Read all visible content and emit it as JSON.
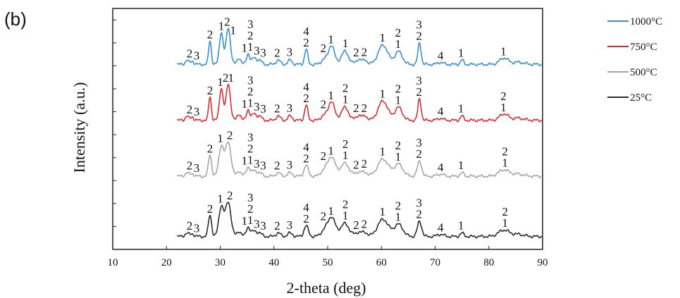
{
  "panel_label": "(b)",
  "chart_data": {
    "type": "line",
    "title": "",
    "xlabel": "2-theta (deg)",
    "ylabel": "Intensity (a.u.)",
    "xlim": [
      10,
      90
    ],
    "xticks": [
      10,
      20,
      30,
      40,
      50,
      60,
      70,
      80,
      90
    ],
    "y_tick_labels": false,
    "legend_position": "right",
    "legend": [
      {
        "name": "1000°C",
        "color": "#3a8fd0"
      },
      {
        "name": "750°C",
        "color": "#d62f2f"
      },
      {
        "name": "500°C",
        "color": "#a6a6a6"
      },
      {
        "name": "25°C",
        "color": "#2b2b2b"
      }
    ],
    "series": [
      {
        "name": "1000°C",
        "color": "#3a8fd0",
        "baseline": 4.3,
        "peaks": [
          [
            23.8,
            0.1,
            0.3
          ],
          [
            24.8,
            0.08,
            0.3
          ],
          [
            28.1,
            0.55,
            0.25
          ],
          [
            30.2,
            0.75,
            0.35
          ],
          [
            31.5,
            0.85,
            0.4
          ],
          [
            33.5,
            0.15,
            0.35
          ],
          [
            35.2,
            0.25,
            0.3
          ],
          [
            36.3,
            0.15,
            0.4
          ],
          [
            37.3,
            0.1,
            0.4
          ],
          [
            40.8,
            0.1,
            0.4
          ],
          [
            43.0,
            0.1,
            0.4
          ],
          [
            46.0,
            0.35,
            0.3
          ],
          [
            49.3,
            0.12,
            0.5
          ],
          [
            50.7,
            0.45,
            0.55
          ],
          [
            53.2,
            0.3,
            0.7
          ],
          [
            55.8,
            0.12,
            0.5
          ],
          [
            57.0,
            0.1,
            0.4
          ],
          [
            60.3,
            0.45,
            0.9
          ],
          [
            63.2,
            0.3,
            0.7
          ],
          [
            67.1,
            0.5,
            0.3
          ],
          [
            71.0,
            0.05,
            0.5
          ],
          [
            75.0,
            0.1,
            0.3
          ],
          [
            82.8,
            0.15,
            0.8
          ],
          [
            85.5,
            0.05,
            1.0
          ]
        ],
        "labels": [
          [
            24.3,
            [
              "2"
            ]
          ],
          [
            25.6,
            [
              "3"
            ]
          ],
          [
            28.1,
            [
              "2"
            ]
          ],
          [
            30.2,
            [
              "1"
            ]
          ],
          [
            31.3,
            [
              "2"
            ]
          ],
          [
            32.4,
            [
              "1"
            ]
          ],
          [
            34.5,
            [
              "1"
            ]
          ],
          [
            35.6,
            [
              "3",
              "2",
              "1"
            ]
          ],
          [
            36.8,
            [
              "3"
            ]
          ],
          [
            38.0,
            [
              "3"
            ]
          ],
          [
            40.6,
            [
              "2"
            ]
          ],
          [
            42.9,
            [
              "3"
            ]
          ],
          [
            46.0,
            [
              "4",
              "2"
            ]
          ],
          [
            49.2,
            [
              "2"
            ]
          ],
          [
            50.6,
            [
              "1"
            ]
          ],
          [
            53.3,
            [
              "1"
            ]
          ],
          [
            55.3,
            [
              "2"
            ]
          ],
          [
            56.8,
            [
              "2"
            ]
          ],
          [
            60.2,
            [
              "1"
            ]
          ],
          [
            63.1,
            [
              "2",
              "1"
            ]
          ],
          [
            67.0,
            [
              "3",
              "2"
            ]
          ],
          [
            71.0,
            [
              "4"
            ]
          ],
          [
            74.8,
            [
              "1"
            ]
          ],
          [
            82.7,
            [
              "1"
            ]
          ]
        ]
      },
      {
        "name": "750°C",
        "color": "#d62f2f",
        "baseline": 3.0,
        "peaks": [
          [
            23.8,
            0.1,
            0.3
          ],
          [
            24.8,
            0.08,
            0.3
          ],
          [
            28.1,
            0.55,
            0.25
          ],
          [
            30.2,
            0.75,
            0.35
          ],
          [
            31.5,
            0.85,
            0.4
          ],
          [
            33.5,
            0.15,
            0.35
          ],
          [
            35.2,
            0.25,
            0.3
          ],
          [
            36.3,
            0.15,
            0.4
          ],
          [
            37.3,
            0.1,
            0.4
          ],
          [
            40.8,
            0.1,
            0.4
          ],
          [
            43.0,
            0.1,
            0.4
          ],
          [
            46.0,
            0.35,
            0.3
          ],
          [
            49.3,
            0.12,
            0.5
          ],
          [
            50.7,
            0.45,
            0.55
          ],
          [
            53.2,
            0.3,
            0.7
          ],
          [
            55.8,
            0.12,
            0.5
          ],
          [
            57.0,
            0.1,
            0.4
          ],
          [
            60.3,
            0.45,
            0.9
          ],
          [
            63.2,
            0.3,
            0.7
          ],
          [
            67.1,
            0.5,
            0.3
          ],
          [
            71.0,
            0.05,
            0.5
          ],
          [
            75.0,
            0.1,
            0.3
          ],
          [
            82.8,
            0.15,
            0.8
          ],
          [
            85.5,
            0.05,
            1.0
          ]
        ],
        "labels": [
          [
            24.3,
            [
              "2"
            ]
          ],
          [
            25.6,
            [
              "3"
            ]
          ],
          [
            28.1,
            [
              "2"
            ]
          ],
          [
            30.0,
            [
              "1"
            ]
          ],
          [
            31.0,
            [
              "2"
            ]
          ],
          [
            32.0,
            [
              "1"
            ]
          ],
          [
            34.5,
            [
              "1"
            ]
          ],
          [
            35.6,
            [
              "3",
              "2",
              "1"
            ]
          ],
          [
            36.8,
            [
              "3"
            ]
          ],
          [
            38.0,
            [
              "3"
            ]
          ],
          [
            40.6,
            [
              "2"
            ]
          ],
          [
            42.9,
            [
              "3"
            ]
          ],
          [
            46.0,
            [
              "4",
              "2"
            ]
          ],
          [
            49.2,
            [
              "2"
            ]
          ],
          [
            50.6,
            [
              "1"
            ]
          ],
          [
            53.3,
            [
              "2",
              "1"
            ]
          ],
          [
            55.3,
            [
              "2"
            ]
          ],
          [
            56.8,
            [
              "2"
            ]
          ],
          [
            60.2,
            [
              "1"
            ]
          ],
          [
            63.1,
            [
              "2",
              "1"
            ]
          ],
          [
            67.0,
            [
              "3",
              "2"
            ]
          ],
          [
            71.0,
            [
              "4"
            ]
          ],
          [
            74.8,
            [
              "1"
            ]
          ],
          [
            82.7,
            [
              "2",
              "1"
            ]
          ]
        ]
      },
      {
        "name": "500°C",
        "color": "#a6a6a6",
        "baseline": 1.7,
        "peaks": [
          [
            23.8,
            0.08,
            0.35
          ],
          [
            24.8,
            0.06,
            0.35
          ],
          [
            28.1,
            0.5,
            0.3
          ],
          [
            30.2,
            0.7,
            0.45
          ],
          [
            31.5,
            0.8,
            0.5
          ],
          [
            33.5,
            0.12,
            0.4
          ],
          [
            35.2,
            0.22,
            0.35
          ],
          [
            36.3,
            0.12,
            0.45
          ],
          [
            37.3,
            0.08,
            0.45
          ],
          [
            40.8,
            0.08,
            0.45
          ],
          [
            43.0,
            0.08,
            0.45
          ],
          [
            46.0,
            0.25,
            0.4
          ],
          [
            49.3,
            0.12,
            0.6
          ],
          [
            50.7,
            0.45,
            0.7
          ],
          [
            53.2,
            0.3,
            0.8
          ],
          [
            55.8,
            0.1,
            0.6
          ],
          [
            57.0,
            0.08,
            0.5
          ],
          [
            60.3,
            0.4,
            1.0
          ],
          [
            63.2,
            0.28,
            0.8
          ],
          [
            67.1,
            0.35,
            0.4
          ],
          [
            71.0,
            0.05,
            0.6
          ],
          [
            75.0,
            0.08,
            0.35
          ],
          [
            82.8,
            0.15,
            1.0
          ],
          [
            85.5,
            0.05,
            1.0
          ]
        ],
        "labels": [
          [
            24.3,
            [
              "2"
            ]
          ],
          [
            25.6,
            [
              "3"
            ]
          ],
          [
            28.1,
            [
              "2"
            ]
          ],
          [
            30.0,
            [
              "1"
            ]
          ],
          [
            31.8,
            [
              "2"
            ]
          ],
          [
            34.5,
            [
              "1"
            ]
          ],
          [
            35.6,
            [
              "3",
              "2",
              "1"
            ]
          ],
          [
            36.8,
            [
              "3"
            ]
          ],
          [
            38.0,
            [
              "3"
            ]
          ],
          [
            40.6,
            [
              "2"
            ]
          ],
          [
            42.9,
            [
              "3"
            ]
          ],
          [
            46.0,
            [
              "4",
              "2"
            ]
          ],
          [
            49.2,
            [
              "2"
            ]
          ],
          [
            50.6,
            [
              "1"
            ]
          ],
          [
            53.3,
            [
              "2",
              "1"
            ]
          ],
          [
            55.3,
            [
              "2"
            ]
          ],
          [
            56.8,
            [
              "2"
            ]
          ],
          [
            60.2,
            [
              "1"
            ]
          ],
          [
            63.1,
            [
              "2",
              "1"
            ]
          ],
          [
            67.0,
            [
              "3",
              "2"
            ]
          ],
          [
            71.0,
            [
              "4"
            ]
          ],
          [
            74.8,
            [
              "1"
            ]
          ],
          [
            83.0,
            [
              "2",
              "1"
            ]
          ]
        ]
      },
      {
        "name": "25°C",
        "color": "#2b2b2b",
        "baseline": 0.3,
        "peaks": [
          [
            23.8,
            0.08,
            0.35
          ],
          [
            24.8,
            0.06,
            0.35
          ],
          [
            28.1,
            0.5,
            0.3
          ],
          [
            30.2,
            0.7,
            0.45
          ],
          [
            31.5,
            0.8,
            0.5
          ],
          [
            33.5,
            0.12,
            0.4
          ],
          [
            35.2,
            0.22,
            0.35
          ],
          [
            36.3,
            0.12,
            0.45
          ],
          [
            37.3,
            0.08,
            0.45
          ],
          [
            40.8,
            0.08,
            0.45
          ],
          [
            43.0,
            0.08,
            0.45
          ],
          [
            46.0,
            0.25,
            0.4
          ],
          [
            49.3,
            0.12,
            0.6
          ],
          [
            50.7,
            0.45,
            0.7
          ],
          [
            53.2,
            0.3,
            0.8
          ],
          [
            55.8,
            0.1,
            0.6
          ],
          [
            57.0,
            0.08,
            0.5
          ],
          [
            60.3,
            0.4,
            1.0
          ],
          [
            63.2,
            0.28,
            0.8
          ],
          [
            67.1,
            0.35,
            0.4
          ],
          [
            71.0,
            0.05,
            0.6
          ],
          [
            75.0,
            0.08,
            0.35
          ],
          [
            82.8,
            0.15,
            1.0
          ],
          [
            85.5,
            0.05,
            1.0
          ]
        ],
        "labels": [
          [
            24.3,
            [
              "2"
            ]
          ],
          [
            25.6,
            [
              "3"
            ]
          ],
          [
            28.1,
            [
              "2"
            ]
          ],
          [
            30.0,
            [
              "1"
            ]
          ],
          [
            31.8,
            [
              "2"
            ]
          ],
          [
            34.5,
            [
              "1"
            ]
          ],
          [
            35.6,
            [
              "3",
              "2",
              "1"
            ]
          ],
          [
            36.8,
            [
              "3"
            ]
          ],
          [
            38.0,
            [
              "3"
            ]
          ],
          [
            40.6,
            [
              "2"
            ]
          ],
          [
            42.9,
            [
              "3"
            ]
          ],
          [
            46.0,
            [
              "4",
              "2"
            ]
          ],
          [
            49.2,
            [
              "2"
            ]
          ],
          [
            50.6,
            [
              "1"
            ]
          ],
          [
            53.3,
            [
              "2",
              "1"
            ]
          ],
          [
            55.3,
            [
              "2"
            ]
          ],
          [
            56.8,
            [
              "2"
            ]
          ],
          [
            60.2,
            [
              "1"
            ]
          ],
          [
            63.1,
            [
              "2",
              "1"
            ]
          ],
          [
            67.0,
            [
              "3",
              "2"
            ]
          ],
          [
            71.0,
            [
              "4"
            ]
          ],
          [
            74.8,
            [
              "1"
            ]
          ],
          [
            83.0,
            [
              "2",
              "1"
            ]
          ]
        ]
      }
    ]
  }
}
